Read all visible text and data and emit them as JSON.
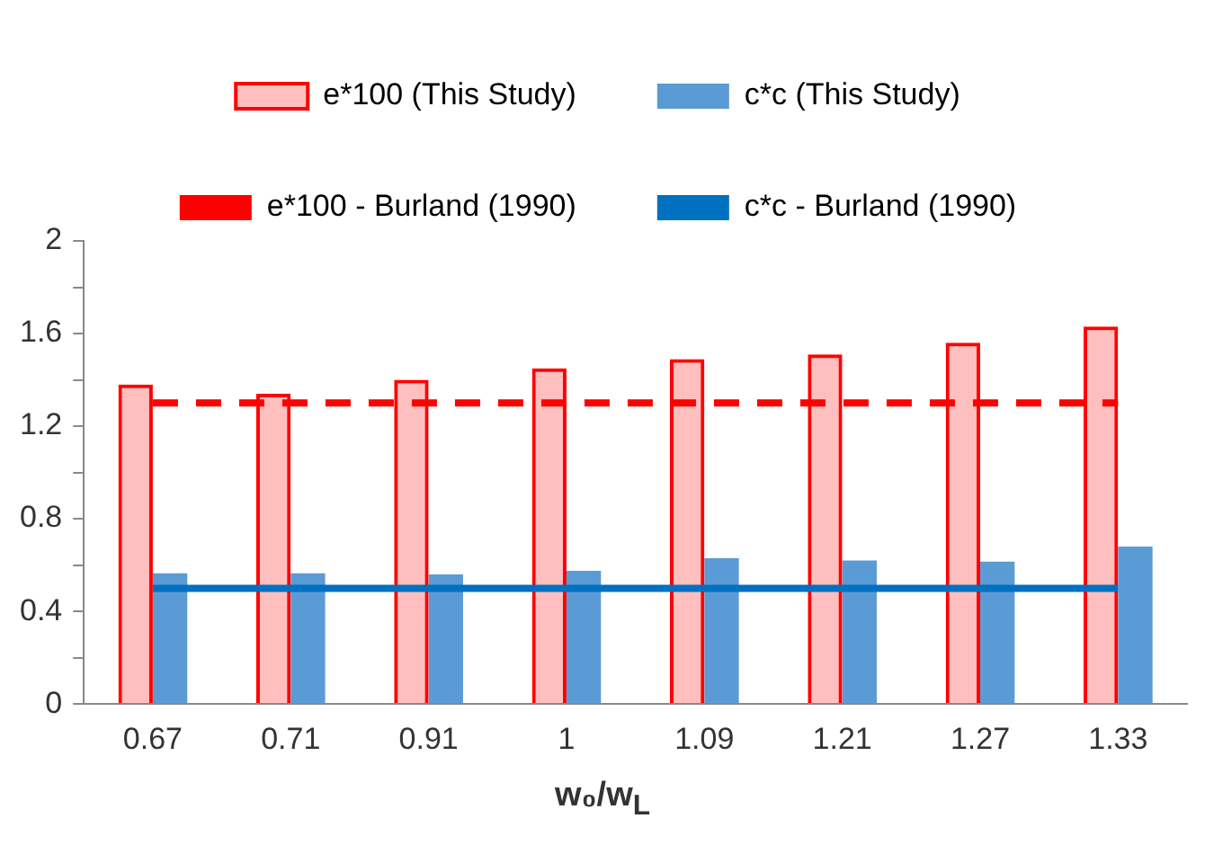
{
  "chart_data": {
    "type": "bar",
    "xlabel": "w₀/w$_{L}$",
    "categories": [
      "0.67",
      "0.71",
      "0.91",
      "1",
      "1.09",
      "1.21",
      "1.27",
      "1.33"
    ],
    "series": [
      {
        "name": "e*100 (This Study)",
        "color": "#ff0000",
        "values": [
          1.38,
          1.34,
          1.4,
          1.45,
          1.49,
          1.51,
          1.56,
          1.63
        ]
      },
      {
        "name": "c*c (This Study)",
        "color": "#5b9bd5",
        "values": [
          0.565,
          0.565,
          0.56,
          0.575,
          0.63,
          0.62,
          0.615,
          0.68
        ]
      },
      {
        "name": "e*100 - Burland (1990)",
        "type": "line",
        "color": "#ff0000",
        "line_style": "dashed",
        "values": [
          1.3,
          1.3,
          1.3,
          1.3,
          1.3,
          1.3,
          1.3,
          1.3
        ]
      },
      {
        "name": "c*c - Burland (1990)",
        "type": "line",
        "color": "#0070c0",
        "line_style": "solid",
        "values": [
          0.5,
          0.5,
          0.5,
          0.5,
          0.5,
          0.5,
          0.5,
          0.5
        ]
      }
    ],
    "ylim": [
      0,
      2
    ],
    "yticks": [
      0,
      {
        "value": 0.2,
        "label": null
      },
      0.4,
      {
        "value": 0.6,
        "label": null
      },
      0.8,
      {
        "value": 1,
        "label": null
      },
      1.2,
      {
        "value": 1.4,
        "label": null
      },
      1.6,
      {
        "value": 1.8,
        "label": null
      },
      2
    ],
    "grid": false,
    "legend": "top",
    "marker": "none"
  }
}
